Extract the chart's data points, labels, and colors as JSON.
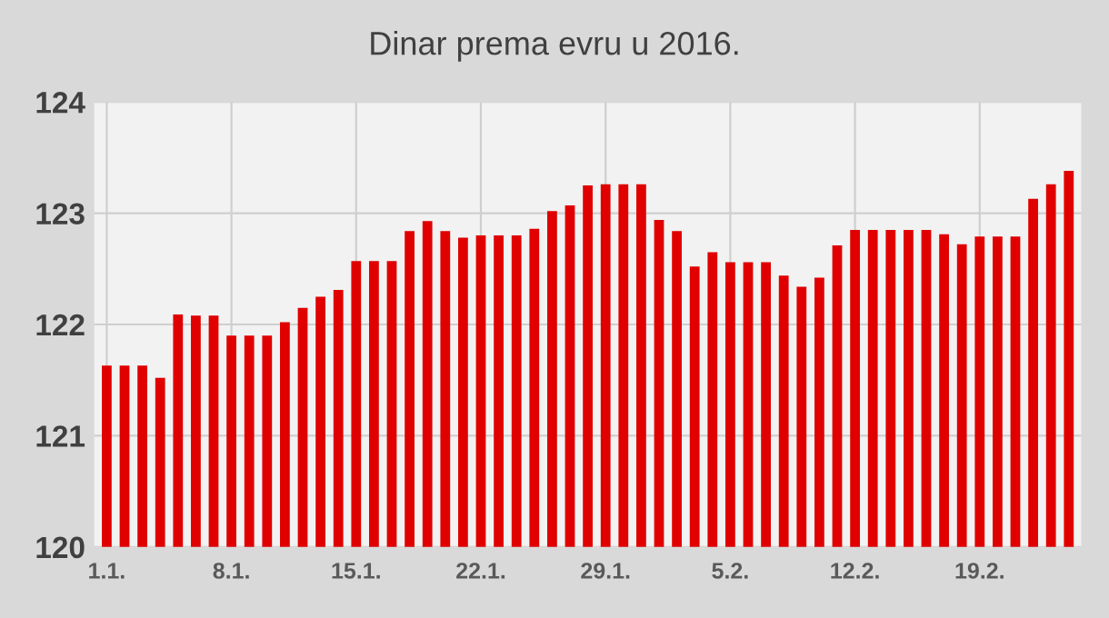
{
  "chart_data": {
    "type": "bar",
    "title": "Dinar prema evru u 2016.",
    "categories": [
      "1.1.",
      null,
      null,
      null,
      null,
      null,
      null,
      "8.1.",
      null,
      null,
      null,
      null,
      null,
      null,
      "15.1.",
      null,
      null,
      null,
      null,
      null,
      null,
      "22.1.",
      null,
      null,
      null,
      null,
      null,
      null,
      "29.1.",
      null,
      null,
      null,
      null,
      null,
      null,
      "5.2.",
      null,
      null,
      null,
      null,
      null,
      null,
      "12.2.",
      null,
      null,
      null,
      null,
      null,
      null,
      "19.2.",
      null,
      null,
      null,
      null,
      null
    ],
    "values": [
      121.63,
      121.63,
      121.63,
      121.52,
      122.09,
      122.08,
      122.08,
      121.9,
      121.9,
      121.9,
      122.02,
      122.15,
      122.25,
      122.31,
      122.57,
      122.57,
      122.57,
      122.84,
      122.93,
      122.84,
      122.78,
      122.8,
      122.8,
      122.8,
      122.86,
      123.02,
      123.07,
      123.25,
      123.26,
      123.26,
      123.26,
      122.94,
      122.84,
      122.52,
      122.65,
      122.56,
      122.56,
      122.56,
      122.44,
      122.34,
      122.42,
      122.71,
      122.85,
      122.85,
      122.85,
      122.85,
      122.85,
      122.81,
      122.72,
      122.79,
      122.79,
      122.79,
      123.13,
      123.26,
      123.38
    ],
    "color": "#e00000",
    "ylim": [
      120,
      124
    ],
    "yticks": [
      120,
      121,
      122,
      123,
      124
    ],
    "grid": true
  }
}
